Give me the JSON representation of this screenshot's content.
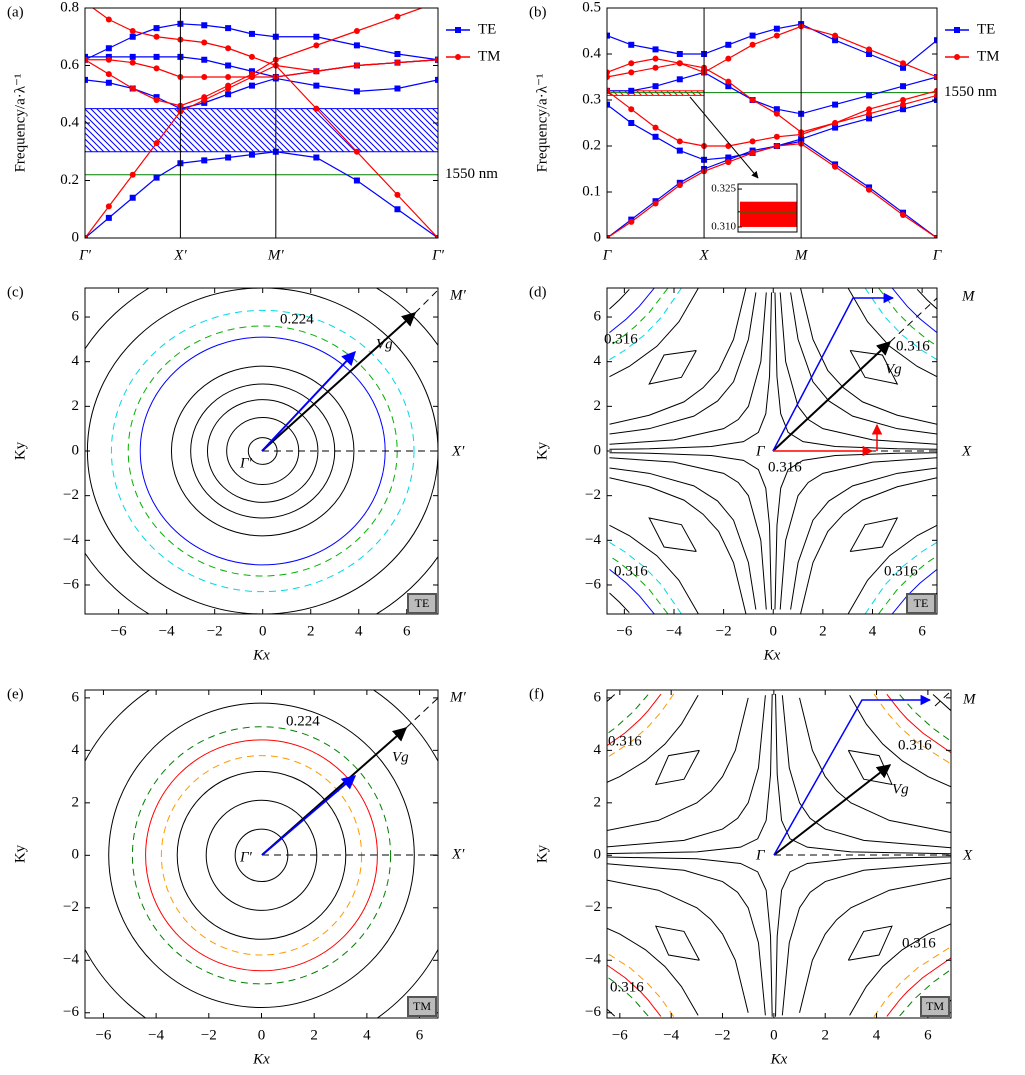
{
  "chart_data": [
    {
      "type": "band",
      "panel_label": "(a)",
      "ylabel": "Frequency/a·λ⁻¹",
      "x": [
        0,
        0.25,
        0.5,
        0.75,
        1,
        1.25,
        1.5,
        1.75,
        2,
        2.425,
        2.85,
        3.275,
        3.7
      ],
      "xlim": [
        0,
        3.7
      ],
      "xticks": [
        {
          "value": 0,
          "label": "Γ′"
        },
        {
          "value": 1,
          "label": "X′"
        },
        {
          "value": 2,
          "label": "M′"
        },
        {
          "value": 3.7,
          "label": "Γ′"
        }
      ],
      "ylim": [
        0,
        0.8
      ],
      "yticks": [
        0,
        0.2,
        0.4,
        0.6,
        0.8
      ],
      "series": [
        {
          "name": "TE",
          "color": "#0000ff",
          "marker": "square",
          "bands": [
            [
              0,
              0.07,
              0.14,
              0.21,
              0.26,
              0.27,
              0.28,
              0.29,
              0.3,
              0.28,
              0.2,
              0.1,
              0
            ],
            [
              0.55,
              0.54,
              0.52,
              0.49,
              0.45,
              0.47,
              0.5,
              0.53,
              0.555,
              0.53,
              0.51,
              0.52,
              0.55
            ],
            [
              0.63,
              0.63,
              0.63,
              0.63,
              0.63,
              0.62,
              0.6,
              0.58,
              0.56,
              0.58,
              0.6,
              0.61,
              0.62
            ],
            [
              0.62,
              0.66,
              0.7,
              0.73,
              0.745,
              0.74,
              0.73,
              0.71,
              0.7,
              0.7,
              0.67,
              0.64,
              0.62
            ]
          ]
        },
        {
          "name": "TM",
          "color": "#ff0000",
          "marker": "circle",
          "bands": [
            [
              0,
              0.11,
              0.22,
              0.33,
              0.44,
              0.48,
              0.52,
              0.56,
              0.6,
              0.45,
              0.3,
              0.15,
              0
            ],
            [
              0.62,
              0.57,
              0.52,
              0.48,
              0.46,
              0.49,
              0.53,
              0.57,
              0.62,
              0.67,
              0.72,
              0.77,
              0.82
            ],
            [
              0.82,
              0.76,
              0.72,
              0.7,
              0.69,
              0.68,
              0.66,
              0.63,
              0.6,
              0.58,
              0.6,
              0.61,
              0.62
            ],
            [
              0.62,
              0.62,
              0.61,
              0.59,
              0.56,
              0.56,
              0.56,
              0.56,
              0.56,
              0.58,
              0.6,
              0.61,
              0.62
            ]
          ]
        }
      ],
      "gaps": [
        {
          "from": 0.3,
          "to": 0.45,
          "color": "#0000ff"
        }
      ],
      "reference_lines": [
        {
          "value": 0.22,
          "color": "#008000",
          "label": "1550 nm"
        }
      ]
    },
    {
      "type": "band",
      "panel_label": "(b)",
      "ylabel": "Frequency/a·λ⁻¹",
      "x": [
        0,
        0.25,
        0.5,
        0.75,
        1,
        1.25,
        1.5,
        1.75,
        2,
        2.35,
        2.7,
        3.05,
        3.4
      ],
      "xlim": [
        0,
        3.4
      ],
      "xticks": [
        {
          "value": 0,
          "label": "Γ"
        },
        {
          "value": 1,
          "label": "X"
        },
        {
          "value": 2,
          "label": "M"
        },
        {
          "value": 3.4,
          "label": "Γ"
        }
      ],
      "ylim": [
        0,
        0.5
      ],
      "yticks": [
        0,
        0.1,
        0.2,
        0.3,
        0.4,
        0.5
      ],
      "series": [
        {
          "name": "TE",
          "color": "#0000ff",
          "marker": "square",
          "bands": [
            [
              0,
              0.04,
              0.08,
              0.12,
              0.15,
              0.17,
              0.19,
              0.2,
              0.21,
              0.16,
              0.11,
              0.055,
              0
            ],
            [
              0.29,
              0.25,
              0.22,
              0.19,
              0.17,
              0.175,
              0.185,
              0.2,
              0.215,
              0.24,
              0.26,
              0.28,
              0.3
            ],
            [
              0.32,
              0.32,
              0.33,
              0.345,
              0.36,
              0.33,
              0.3,
              0.28,
              0.27,
              0.29,
              0.31,
              0.33,
              0.35
            ],
            [
              0.44,
              0.42,
              0.41,
              0.4,
              0.4,
              0.42,
              0.44,
              0.455,
              0.465,
              0.43,
              0.4,
              0.37,
              0.43
            ]
          ]
        },
        {
          "name": "TM",
          "color": "#ff0000",
          "marker": "circle",
          "bands": [
            [
              0,
              0.035,
              0.075,
              0.115,
              0.145,
              0.165,
              0.185,
              0.2,
              0.205,
              0.155,
              0.105,
              0.05,
              0
            ],
            [
              0.32,
              0.28,
              0.24,
              0.21,
              0.2,
              0.2,
              0.21,
              0.22,
              0.225,
              0.25,
              0.28,
              0.3,
              0.32
            ],
            [
              0.35,
              0.36,
              0.37,
              0.38,
              0.37,
              0.34,
              0.3,
              0.27,
              0.23,
              0.25,
              0.27,
              0.29,
              0.31
            ],
            [
              0.36,
              0.38,
              0.39,
              0.38,
              0.36,
              0.39,
              0.42,
              0.44,
              0.46,
              0.44,
              0.41,
              0.38,
              0.35
            ]
          ]
        }
      ],
      "gaps": [
        {
          "from": 0.31,
          "to": 0.32,
          "color": "#ff0000",
          "x_range": [
            0,
            1
          ]
        }
      ],
      "reference_lines": [
        {
          "value": 0.316,
          "color": "#008000",
          "label": "1550 nm"
        }
      ],
      "inset": {
        "ylim": [
          0.308,
          0.327
        ],
        "yticks": [
          {
            "value": 0.31,
            "label": "0.310"
          },
          0.325
        ]
      }
    },
    {
      "type": "contour",
      "panel_label": "(c)",
      "xlabel": "Kx",
      "ylabel": "Ky",
      "xlim": [
        -7.4,
        7.3
      ],
      "ylim": [
        -7.3,
        7.3
      ],
      "xticks": [
        {
          "value": -6,
          "label": "−6"
        },
        {
          "value": -4,
          "label": "−4"
        },
        {
          "value": -2,
          "label": "−2"
        },
        0,
        2,
        4,
        6
      ],
      "yticks": [
        {
          "value": -6,
          "label": "−6"
        },
        {
          "value": -4,
          "label": "−4"
        },
        {
          "value": -2,
          "label": "−2"
        },
        0,
        2,
        4,
        6
      ],
      "contours": [
        {
          "r": 0.6,
          "color": "#000000"
        },
        {
          "r": 1.5,
          "color": "#000000"
        },
        {
          "r": 2.3,
          "color": "#000000"
        },
        {
          "r": 3.0,
          "color": "#000000"
        },
        {
          "r": 3.8,
          "color": "#000000"
        },
        {
          "r": 5.1,
          "color": "#0000ff"
        },
        {
          "r": 5.6,
          "color": "#00b000",
          "dashed": true
        },
        {
          "r": 6.3,
          "color": "#00d8e8",
          "dashed": true
        },
        {
          "r": 7.3,
          "color": "#000000"
        },
        {
          "r": 8.7,
          "color": "#000000"
        }
      ],
      "origin_label": "Γ′",
      "x_end_label": "X′",
      "diagonal_label": "M′",
      "vector_label": "Vg",
      "contour_label": "0.224",
      "polarization": "TE"
    },
    {
      "type": "contour",
      "panel_label": "(d)",
      "xlabel": "Kx",
      "ylabel": "Ky",
      "xlim": [
        -6.7,
        6.6
      ],
      "ylim": [
        -7.3,
        7.3
      ],
      "xticks": [
        {
          "value": -6,
          "label": "−6"
        },
        {
          "value": -4,
          "label": "−4"
        },
        {
          "value": -2,
          "label": "−2"
        },
        0,
        2,
        4,
        6
      ],
      "yticks": [
        {
          "value": -6,
          "label": "−6"
        },
        {
          "value": -4,
          "label": "−4"
        },
        {
          "value": -2,
          "label": "−2"
        },
        0,
        2,
        4,
        6
      ],
      "symmetry": "four-fold",
      "curves": [
        {
          "color": "#000000",
          "x": [
            0.07,
            0.15,
            0.3,
            0.6,
            1.2,
            2.5,
            5,
            6.6
          ],
          "y": [
            7.1,
            3.33,
            1.67,
            0.83,
            0.42,
            0.2,
            0.1,
            0.076
          ]
        },
        {
          "color": "#000000",
          "x": [
            0.28,
            0.5,
            1,
            1.41,
            2,
            4,
            6.6
          ],
          "y": [
            7.1,
            4,
            2,
            1.41,
            1,
            0.5,
            0.3
          ]
        },
        {
          "color": "#000000",
          "x": [
            0.7,
            1,
            1.6,
            2.24,
            3.2,
            5,
            6.6
          ],
          "y": [
            7.1,
            5,
            3.1,
            2.24,
            1.56,
            1,
            0.76
          ]
        },
        {
          "color": "#000000",
          "x": [
            1.1,
            1.6,
            2.2,
            2.83,
            3.6,
            5,
            6.6
          ],
          "y": [
            7.3,
            5,
            3.6,
            2.83,
            2.2,
            1.6,
            1.2
          ]
        },
        {
          "color": "#000000",
          "x": [
            3.1,
            3.7,
            5.0,
            4.4,
            3.1
          ],
          "y": [
            4.5,
            3.3,
            3.0,
            4.3,
            4.5
          ]
        },
        {
          "color": "#000000",
          "x": [
            3.0,
            3.8,
            4.69,
            5.8,
            6.6
          ],
          "y": [
            7.33,
            5.79,
            4.69,
            3.79,
            3.33
          ]
        },
        {
          "color": "#00d8e8",
          "dashed": true,
          "x": [
            3.7,
            4.5,
            5.2,
            6.0,
            6.6
          ],
          "y": [
            7.3,
            6,
            5.19,
            4.5,
            4.09
          ]
        },
        {
          "color": "#00b000",
          "dashed": true,
          "x": [
            4.25,
            5,
            5.57,
            6.2,
            6.6
          ],
          "y": [
            7.29,
            6.2,
            5.57,
            5,
            4.7
          ]
        },
        {
          "color": "#0000ff",
          "x": [
            4.8,
            5.4,
            5.92,
            6.6
          ],
          "y": [
            7.29,
            6.48,
            5.91,
            5.3
          ]
        },
        {
          "color": "#000000",
          "x": [
            5.8,
            6.2,
            6.6
          ],
          "y": [
            7.24,
            6.77,
            6.36
          ]
        }
      ],
      "origin_label": "Γ",
      "x_end_label": "X",
      "diagonal_label": "M",
      "vector_label": "Vg",
      "contour_label": "0.316",
      "polarization": "TE"
    },
    {
      "type": "contour",
      "panel_label": "(e)",
      "xlabel": "Kx",
      "ylabel": "Ky",
      "xlim": [
        -6.7,
        6.7
      ],
      "ylim": [
        -6.2,
        6.3
      ],
      "xticks": [
        {
          "value": -6,
          "label": "−6"
        },
        {
          "value": -4,
          "label": "−4"
        },
        {
          "value": -2,
          "label": "−2"
        },
        0,
        2,
        4,
        6
      ],
      "yticks": [
        {
          "value": -6,
          "label": "−6"
        },
        {
          "value": -4,
          "label": "−4"
        },
        {
          "value": -2,
          "label": "−2"
        },
        0,
        2,
        4,
        6
      ],
      "contours": [
        {
          "r": 1.0,
          "color": "#000000"
        },
        {
          "r": 2.1,
          "color": "#000000"
        },
        {
          "r": 3.2,
          "color": "#000000"
        },
        {
          "r": 3.8,
          "color": "#ff9900",
          "dashed": true
        },
        {
          "r": 4.4,
          "color": "#ff0000"
        },
        {
          "r": 4.9,
          "color": "#008000",
          "dashed": true
        },
        {
          "r": 5.8,
          "color": "#000000"
        },
        {
          "r": 7.6,
          "color": "#000000"
        }
      ],
      "origin_label": "Γ′",
      "x_end_label": "X′",
      "diagonal_label": "M′",
      "vector_label": "Vg",
      "contour_label": "0.224",
      "polarization": "TM"
    },
    {
      "type": "contour",
      "panel_label": "(f)",
      "xlabel": "Kx",
      "ylabel": "Ky",
      "xlim": [
        -6.5,
        6.9
      ],
      "ylim": [
        -6.2,
        6.3
      ],
      "xticks": [
        {
          "value": -6,
          "label": "−6"
        },
        {
          "value": -4,
          "label": "−4"
        },
        {
          "value": -2,
          "label": "−2"
        },
        0,
        2,
        4,
        6
      ],
      "yticks": [
        {
          "value": -6,
          "label": "−6"
        },
        {
          "value": -4,
          "label": "−4"
        },
        {
          "value": -2,
          "label": "−2"
        },
        0,
        2,
        4,
        6
      ],
      "symmetry": "four-fold",
      "curves": [
        {
          "color": "#000000",
          "x": [
            0.065,
            0.13,
            0.3,
            0.63,
            1.3,
            3,
            6.9
          ],
          "y": [
            6.15,
            3.08,
            1.33,
            0.63,
            0.31,
            0.13,
            0.058
          ]
        },
        {
          "color": "#000000",
          "x": [
            0.33,
            0.6,
            1,
            1.41,
            2,
            3.5,
            6.9
          ],
          "y": [
            6.1,
            3.33,
            2,
            1.41,
            1,
            0.57,
            0.29
          ]
        },
        {
          "color": "#000000",
          "x": [
            1,
            1.5,
            2,
            2.45,
            3,
            4.5,
            6.9
          ],
          "y": [
            6,
            4,
            3,
            2.45,
            2,
            1.33,
            0.87
          ]
        },
        {
          "color": "#000000",
          "x": [
            2.9,
            3.5,
            4.6,
            4.1,
            2.9
          ],
          "y": [
            4,
            2.9,
            2.7,
            3.8,
            4
          ]
        },
        {
          "color": "#000000",
          "x": [
            2.95,
            3.6,
            4.24,
            5,
            6,
            6.9
          ],
          "y": [
            6.1,
            5,
            4.24,
            3.6,
            3,
            2.61
          ]
        },
        {
          "color": "#ff9900",
          "dashed": true,
          "x": [
            3.9,
            4.4,
            4.9,
            5.6,
            6.9
          ],
          "y": [
            6.15,
            5.45,
            4.9,
            4.29,
            3.48
          ]
        },
        {
          "color": "#ff0000",
          "x": [
            4.4,
            4.9,
            5.2,
            5.8,
            6.9
          ],
          "y": [
            6.14,
            5.51,
            5.19,
            4.66,
            3.91
          ]
        },
        {
          "color": "#008000",
          "dashed": true,
          "x": [
            4.9,
            5.48,
            6.2,
            6.9
          ],
          "y": [
            6.12,
            5.47,
            4.84,
            4.35
          ]
        },
        {
          "color": "#000000",
          "x": [
            6.2,
            6.9
          ],
          "y": [
            6.13,
            5.51
          ]
        }
      ],
      "origin_label": "Γ",
      "x_end_label": "X",
      "diagonal_label": "M",
      "vector_label": "Vg",
      "contour_label": "0.316",
      "polarization": "TM"
    }
  ]
}
